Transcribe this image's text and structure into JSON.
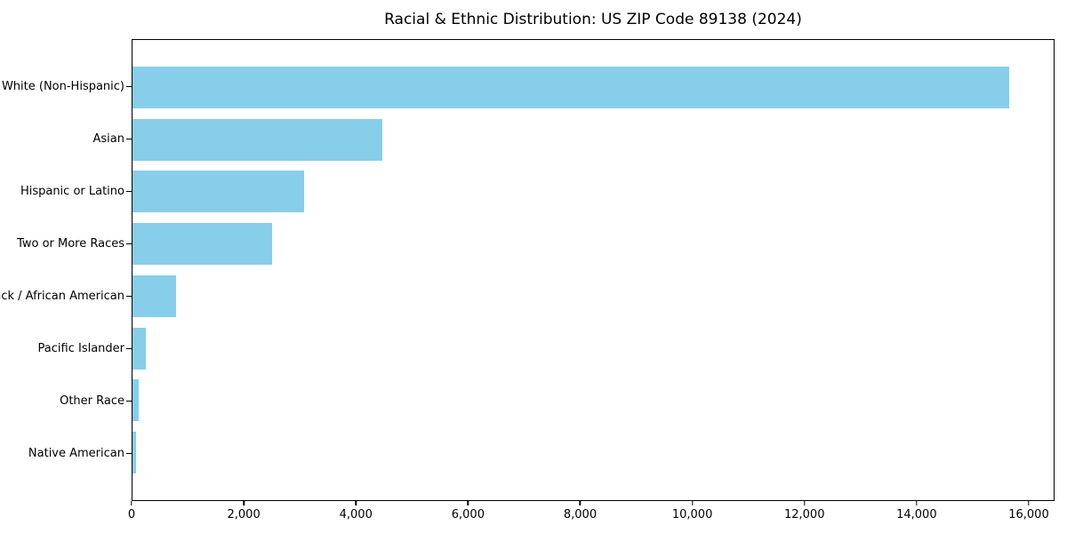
{
  "chart_data": {
    "type": "bar",
    "orientation": "horizontal",
    "title": "Racial & Ethnic Distribution: US ZIP Code 89138 (2024)",
    "categories": [
      "White (Non-Hispanic)",
      "Asian",
      "Hispanic or Latino",
      "Two or More Races",
      "Black / African American",
      "Pacific Islander",
      "Other Race",
      "Native American"
    ],
    "values": [
      15670,
      4470,
      3060,
      2500,
      780,
      240,
      110,
      60
    ],
    "xlabel": "",
    "ylabel": "",
    "xlim": [
      0,
      16460
    ],
    "xticks": [
      0,
      2000,
      4000,
      6000,
      8000,
      10000,
      12000,
      14000,
      16000
    ],
    "xtick_labels": [
      "0",
      "2,000",
      "4,000",
      "6,000",
      "8,000",
      "10,000",
      "12,000",
      "14,000",
      "16,000"
    ],
    "bar_color": "#87CEEB",
    "axis_color": "#000000",
    "background_color": "#ffffff",
    "grid": false,
    "legend": null
  }
}
